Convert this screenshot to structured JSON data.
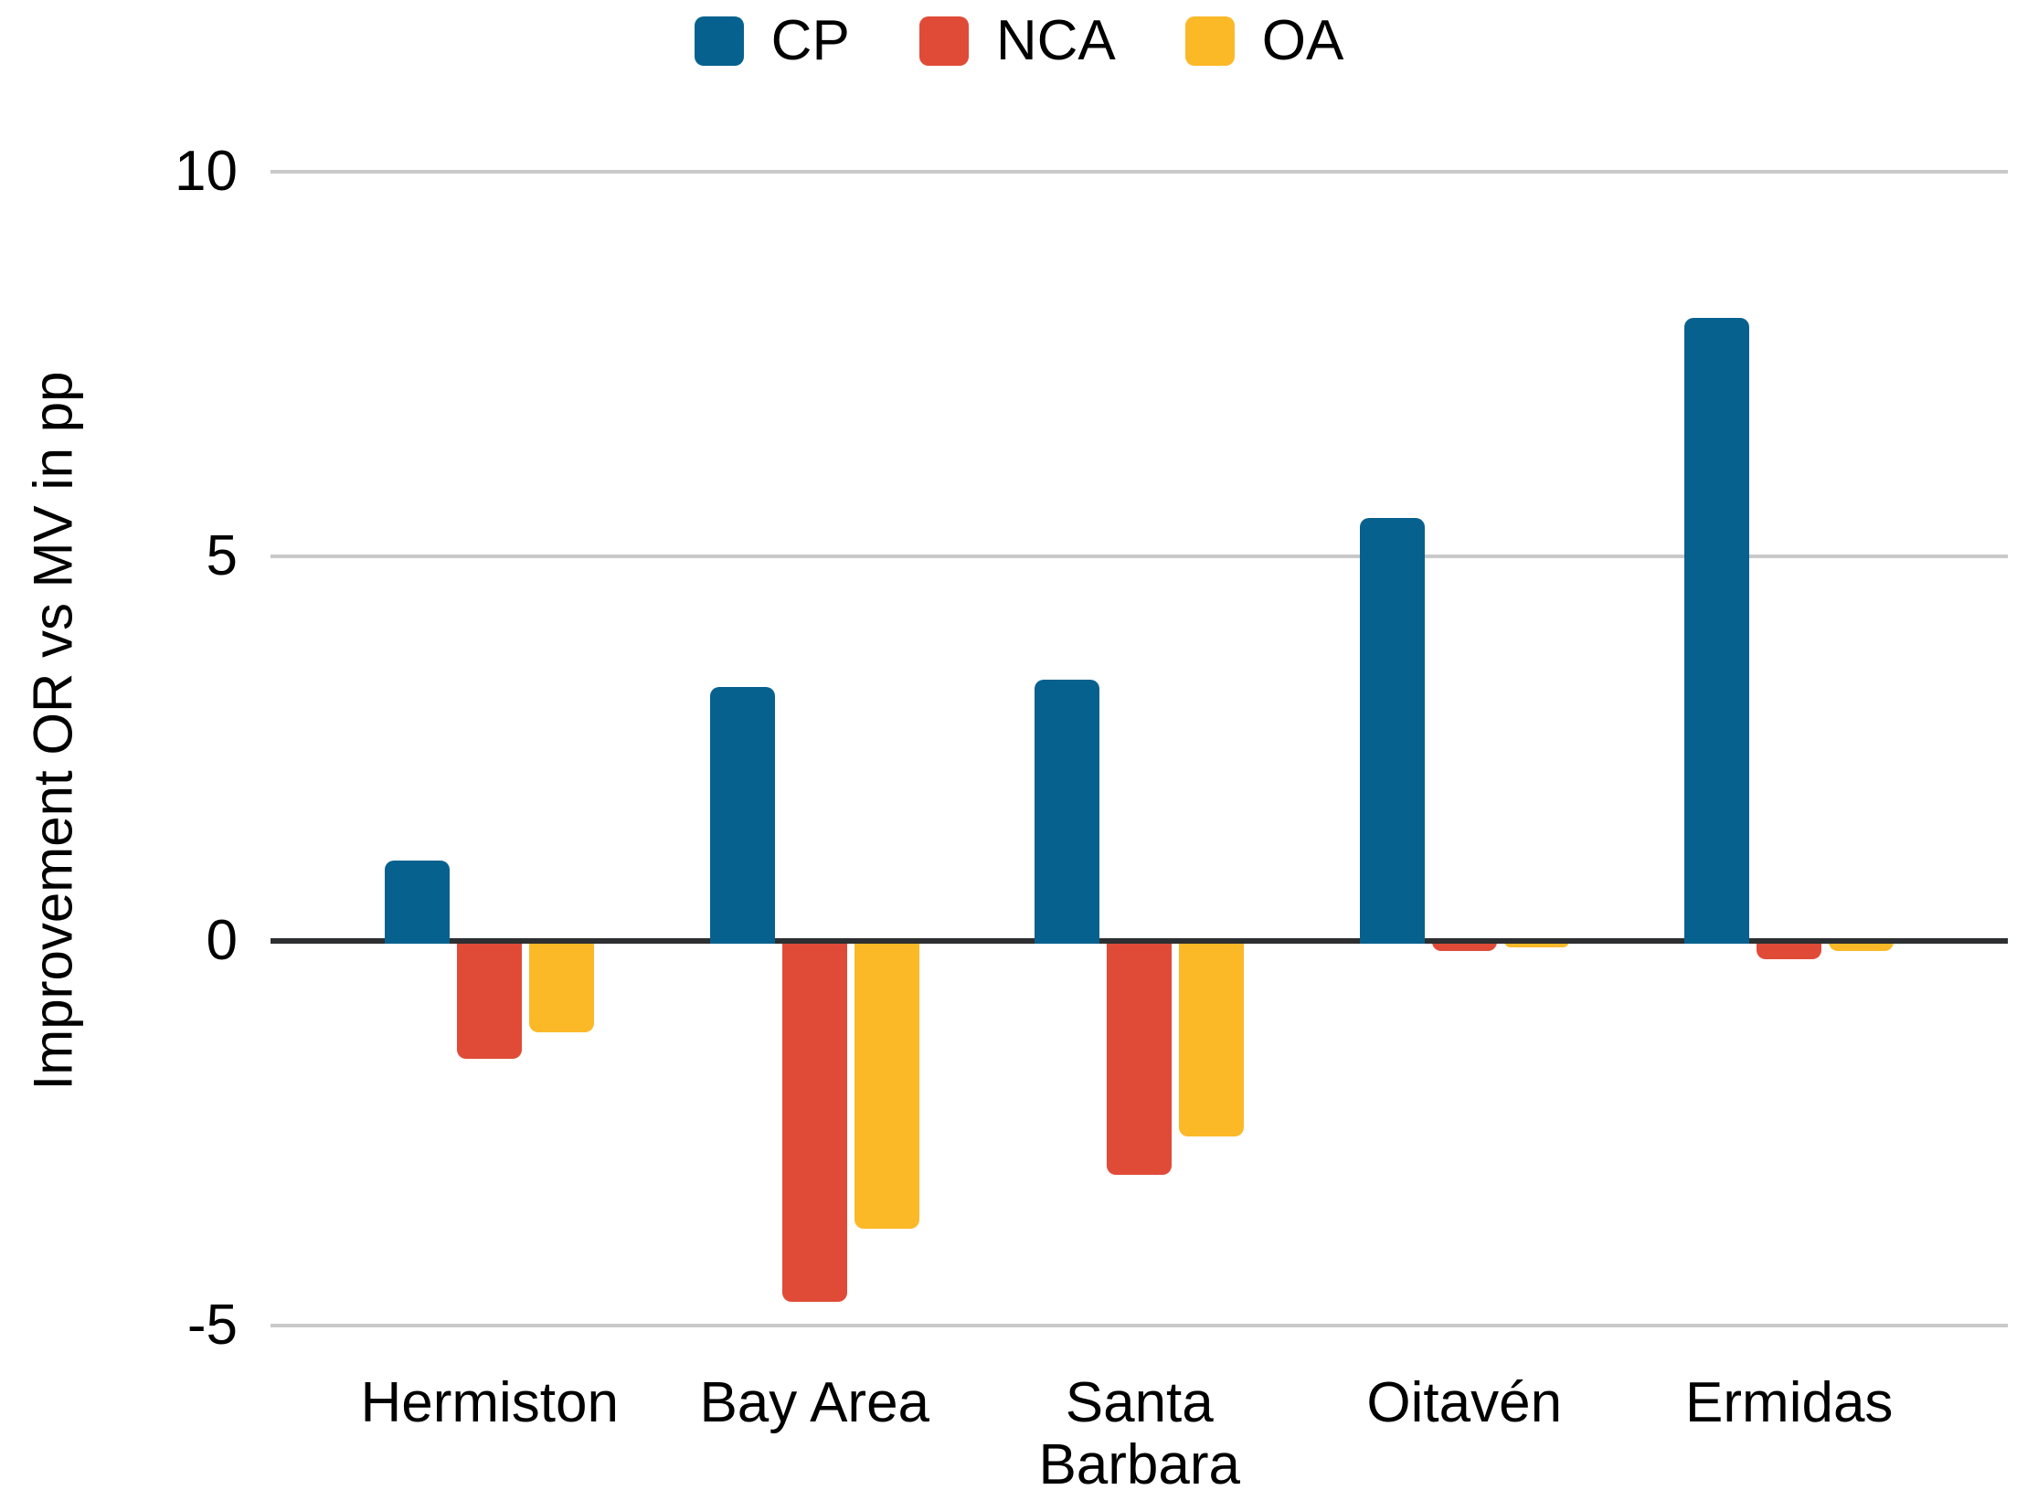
{
  "legend": [
    {
      "label": "CP",
      "color": "#07618e"
    },
    {
      "label": "NCA",
      "color": "#e04b38"
    },
    {
      "label": "OA",
      "color": "#fbb928"
    }
  ],
  "y_axis": {
    "label": "Improvement OR vs MV in pp",
    "ticks": [
      10,
      5,
      0,
      -5
    ],
    "tick_labels": [
      "10",
      "5",
      "0",
      "-5"
    ]
  },
  "chart_data": {
    "type": "bar",
    "title": "",
    "xlabel": "",
    "ylabel": "Improvement OR vs MV in pp",
    "categories": [
      "Hermiston",
      "Bay Area",
      "Santa Barbara",
      "Oitavén",
      "Ermidas"
    ],
    "series": [
      {
        "name": "CP",
        "color": "#07618e",
        "values": [
          1.05,
          3.3,
          3.4,
          5.5,
          8.1
        ]
      },
      {
        "name": "NCA",
        "color": "#e04b38",
        "values": [
          -1.5,
          -4.65,
          -3.0,
          -0.1,
          -0.2
        ]
      },
      {
        "name": "OA",
        "color": "#fbb928",
        "values": [
          -1.15,
          -3.7,
          -2.5,
          -0.05,
          -0.1
        ]
      }
    ],
    "ylim": [
      -5.75,
      10.75
    ],
    "gridlines": [
      10,
      5,
      -5
    ],
    "zero_line": 0,
    "grid_color": "#c9c9c9",
    "zero_line_color": "#2d2f31",
    "legend_position": "top",
    "background_color": "#ffffff"
  }
}
